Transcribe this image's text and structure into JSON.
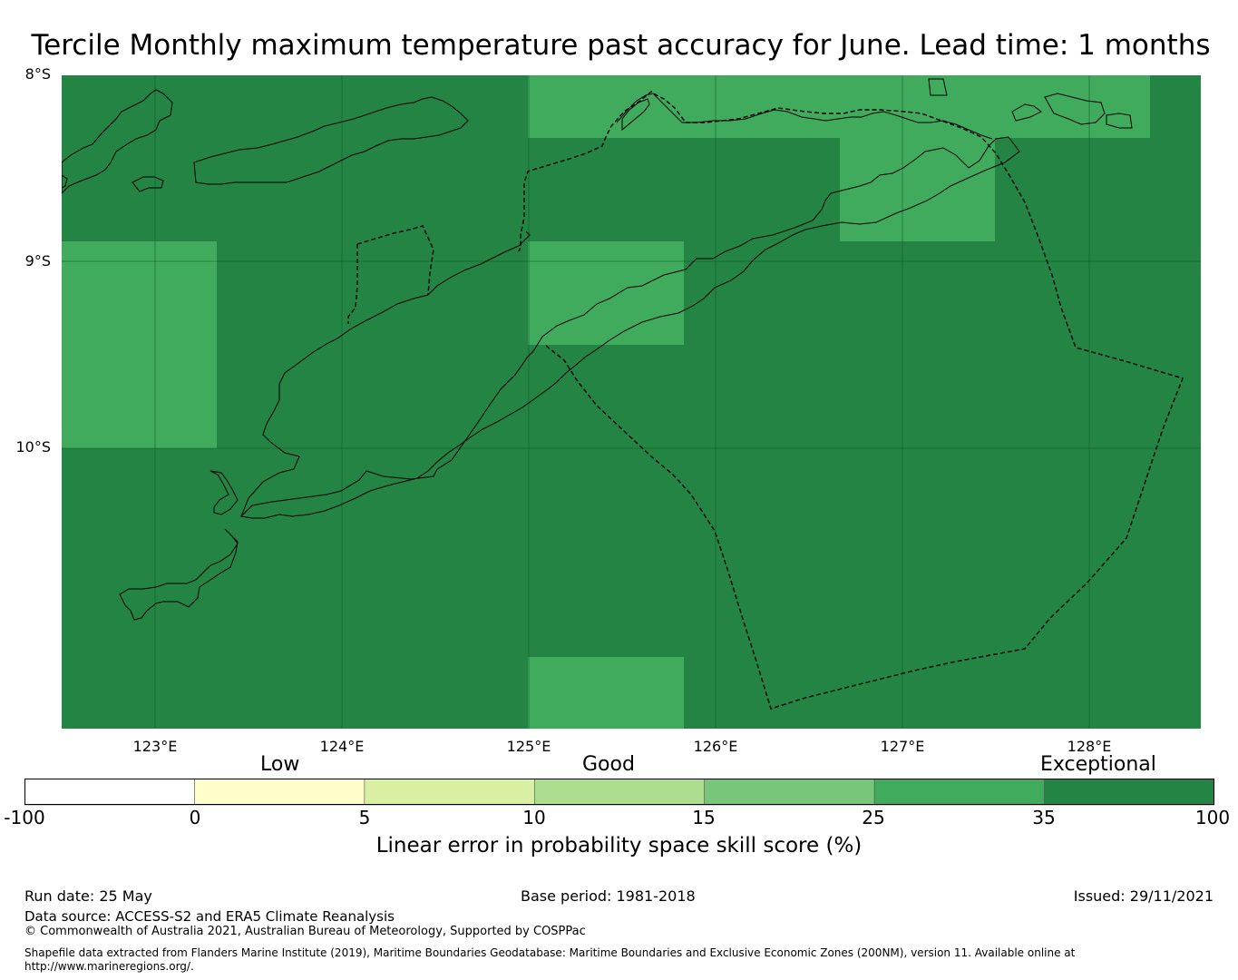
{
  "title": "Tercile Monthly maximum temperature past accuracy for June. Lead time: 1 months",
  "map": {
    "lat_labels": [
      "8°S",
      "9°S",
      "10°S"
    ],
    "lon_labels": [
      "123°E",
      "124°E",
      "125°E",
      "126°E",
      "127°E",
      "128°E"
    ],
    "extent": {
      "lon_min": 122.5,
      "lon_max": 128.6,
      "lat_min": -11.5,
      "lat_max": -8.0
    },
    "grid_lines": true,
    "background_color": "#238443",
    "highlight_color": "#41ab5d",
    "highlight_cells_skill_band": "25-35",
    "background_skill_band": "35-100"
  },
  "legend": {
    "categories": [
      "Low",
      "Good",
      "Exceptional"
    ],
    "ticks": [
      "-100",
      "0",
      "5",
      "10",
      "15",
      "25",
      "35",
      "100"
    ],
    "colors": [
      "#ffffff",
      "#ffffcc",
      "#d9f0a3",
      "#addd8e",
      "#78c679",
      "#41ab5d",
      "#238443"
    ],
    "title": "Linear error in probability space skill score (%)"
  },
  "footer": {
    "run_date": "Run date: 25 May",
    "base_period": "Base period: 1981-2018",
    "issued": "Issued: 29/11/2021",
    "data_source": "Data source: ACCESS-S2 and ERA5 Climate Reanalysis",
    "copyright": "© Commonwealth of Australia 2021, Australian Bureau of Meteorology, Supported by COSPPac",
    "shapefile_line1": "Shapefile data extracted from Flanders Marine Institute (2019), Maritime Boundaries Geodatabase: Maritime Boundaries and Exclusive Economic Zones (200NM), version 11. Available online at",
    "shapefile_line2": "http://www.marineregions.org/."
  }
}
